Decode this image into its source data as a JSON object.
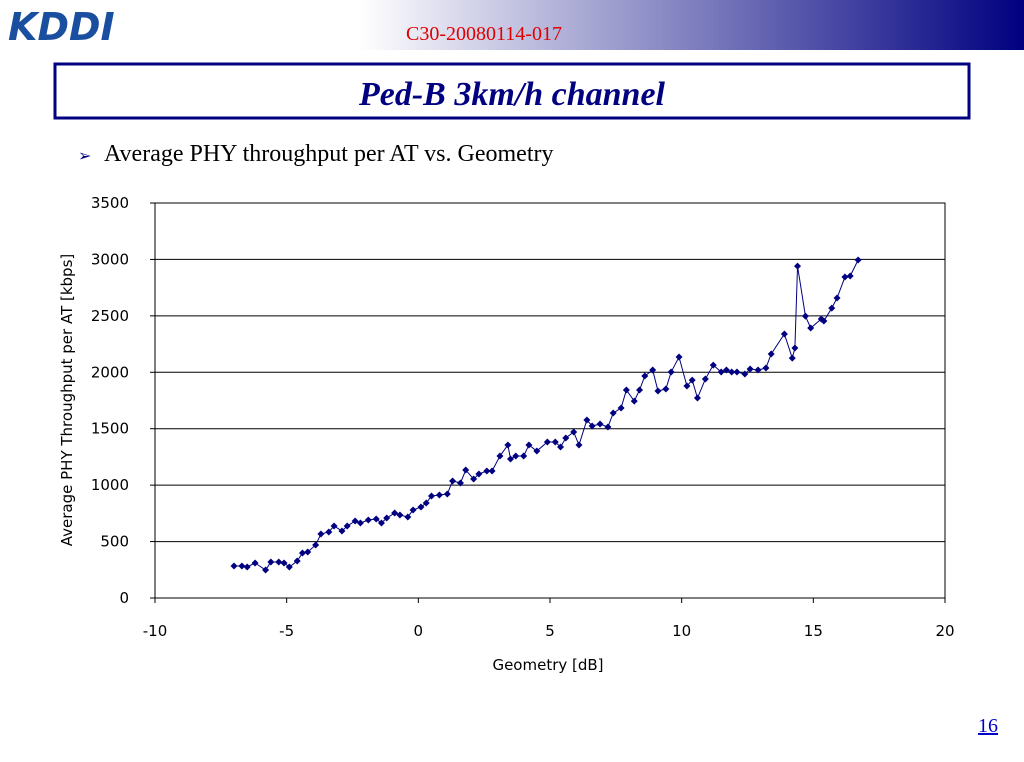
{
  "header": {
    "logo": "KDDI",
    "doc_id": "C30-20080114-017"
  },
  "slide_title": "Ped-B 3km/h channel",
  "bullet": "Average PHY throughput per AT vs. Geometry",
  "page_number": "16",
  "chart_data": {
    "type": "line",
    "xlabel": "Geometry [dB]",
    "ylabel": "Average PHY Throughput per AT [kbps]",
    "xlim": [
      -10,
      20
    ],
    "xticks": [
      -10,
      -5,
      0,
      5,
      10,
      15,
      20
    ],
    "ylim": [
      0,
      3500
    ],
    "yticks": [
      0,
      500,
      1000,
      1500,
      2000,
      2500,
      3000,
      3500
    ],
    "grid": true,
    "x": [
      -7.0,
      -6.7,
      -6.5,
      -6.2,
      -5.8,
      -5.6,
      -5.3,
      -5.1,
      -4.9,
      -4.6,
      -4.4,
      -4.2,
      -3.9,
      -3.7,
      -3.4,
      -3.2,
      -2.9,
      -2.7,
      -2.4,
      -2.2,
      -1.9,
      -1.6,
      -1.4,
      -1.2,
      -0.9,
      -0.7,
      -0.4,
      -0.2,
      0.1,
      0.3,
      0.5,
      0.8,
      1.1,
      1.3,
      1.6,
      1.8,
      2.1,
      2.3,
      2.6,
      2.8,
      3.1,
      3.4,
      3.5,
      3.7,
      4.0,
      4.2,
      4.5,
      4.9,
      5.2,
      5.4,
      5.6,
      5.9,
      6.1,
      6.4,
      6.6,
      6.9,
      7.2,
      7.4,
      7.7,
      7.9,
      8.2,
      8.4,
      8.6,
      8.9,
      9.1,
      9.4,
      9.6,
      9.9,
      10.2,
      10.4,
      10.6,
      10.9,
      11.2,
      11.5,
      11.7,
      11.9,
      12.1,
      12.4,
      12.6,
      12.9,
      13.2,
      13.4,
      13.9,
      14.2,
      14.3,
      14.4,
      14.7,
      14.9,
      15.3,
      15.4,
      15.7,
      15.9,
      16.2,
      16.4,
      16.7
    ],
    "series": [
      {
        "color": "#000080",
        "values": [
          284,
          284,
          275,
          310,
          248,
          319,
          319,
          310,
          275,
          328,
          399,
          408,
          470,
          567,
          585,
          638,
          594,
          638,
          682,
          665,
          691,
          700,
          665,
          709,
          753,
          735,
          718,
          780,
          806,
          842,
          904,
          913,
          921,
          1037,
          1019,
          1134,
          1054,
          1099,
          1125,
          1125,
          1258,
          1356,
          1232,
          1258,
          1258,
          1356,
          1302,
          1382,
          1382,
          1338,
          1418,
          1471,
          1356,
          1577,
          1524,
          1542,
          1515,
          1639,
          1683,
          1843,
          1745,
          1843,
          1967,
          2020,
          1834,
          1852,
          2002,
          2135,
          1878,
          1931,
          1772,
          1940,
          2064,
          2002,
          2020,
          2002,
          2002,
          1985,
          2029,
          2020,
          2038,
          2162,
          2339,
          2126,
          2215,
          2941,
          2498,
          2392,
          2472,
          2454,
          2569,
          2658,
          2844,
          2853,
          2995
        ]
      }
    ]
  }
}
